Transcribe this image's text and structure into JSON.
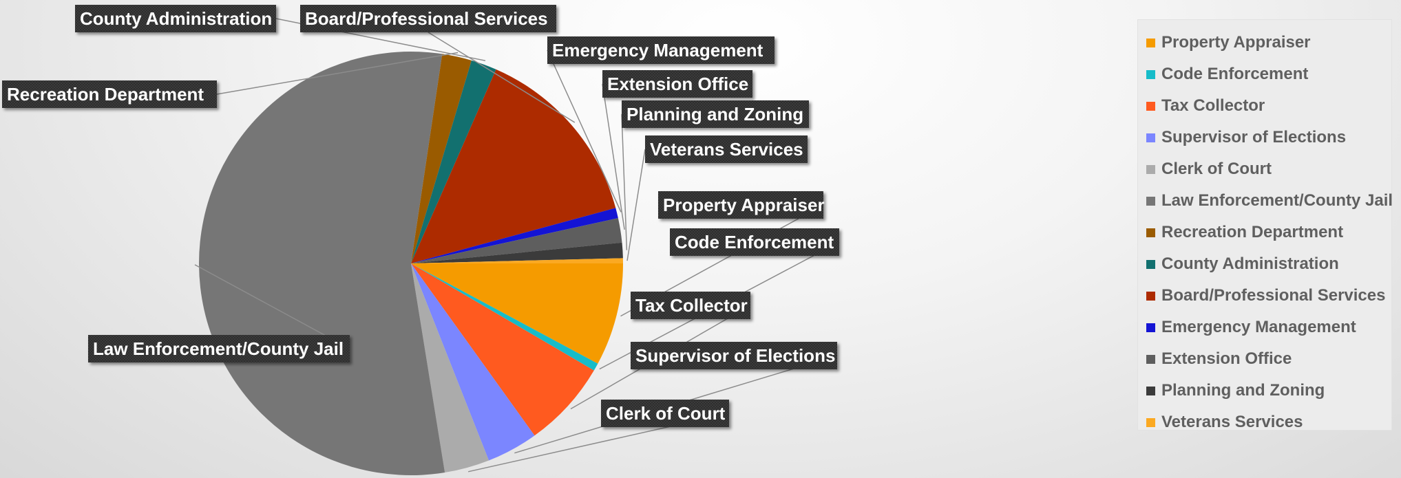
{
  "chart_data": {
    "type": "pie",
    "legend_position": "right",
    "slices": [
      {
        "name": "Property Appraiser",
        "value": 8.0,
        "color": "#F59B00"
      },
      {
        "name": "Code Enforcement",
        "value": 0.6,
        "color": "#17BCC9"
      },
      {
        "name": "Tax Collector",
        "value": 6.8,
        "color": "#FF5A1F"
      },
      {
        "name": "Supervisor of Elections",
        "value": 4.0,
        "color": "#7B86FF"
      },
      {
        "name": "Clerk of Court",
        "value": 3.5,
        "color": "#ABABAB"
      },
      {
        "name": "Law Enforcement/County Jail",
        "value": 56.0,
        "color": "#767676"
      },
      {
        "name": "Recreation Department",
        "value": 2.3,
        "color": "#9A5B00"
      },
      {
        "name": "County Administration",
        "value": 2.0,
        "color": "#12706F"
      },
      {
        "name": "Board/Professional Services",
        "value": 14.5,
        "color": "#AD2B00"
      },
      {
        "name": "Emergency Management",
        "value": 0.8,
        "color": "#1414D4"
      },
      {
        "name": "Extension Office",
        "value": 1.9,
        "color": "#5E5E5E"
      },
      {
        "name": "Planning and Zoning",
        "value": 1.2,
        "color": "#3B3B3B"
      },
      {
        "name": "Veterans Services",
        "value": 0.4,
        "color": "#FBA922"
      }
    ]
  }
}
